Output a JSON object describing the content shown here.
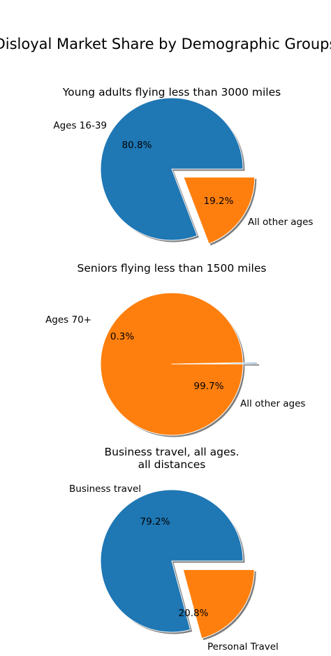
{
  "title": "Disloyal Market Share by Demographic Groups",
  "chart_data": [
    {
      "type": "pie",
      "title": "Young adults flying less than 3000 miles",
      "labels": [
        "Ages 16-39",
        "All other ages"
      ],
      "values": [
        80.8,
        19.2
      ],
      "value_labels": [
        "80.8%",
        "19.2%"
      ],
      "colors": [
        "#1f77b4",
        "#ff7f0e"
      ],
      "exploded": [
        false,
        true
      ],
      "shadow": true
    },
    {
      "type": "pie",
      "title": "Seniors flying less than 1500 miles",
      "labels": [
        "Ages 70+",
        "All other ages"
      ],
      "values": [
        0.3,
        99.7
      ],
      "value_labels": [
        "0.3%",
        "99.7%"
      ],
      "colors": [
        "#1f77b4",
        "#ff7f0e"
      ],
      "exploded": [
        true,
        false
      ],
      "shadow": true
    },
    {
      "type": "pie",
      "title": "Business travel, all ages.\nall distances",
      "title_lines": [
        "Business travel, all ages.",
        "all distances"
      ],
      "labels": [
        "Business travel",
        "Personal Travel"
      ],
      "values": [
        79.2,
        20.8
      ],
      "value_labels": [
        "79.2%",
        "20.8%"
      ],
      "colors": [
        "#1f77b4",
        "#ff7f0e"
      ],
      "exploded": [
        false,
        true
      ],
      "shadow": true
    }
  ]
}
